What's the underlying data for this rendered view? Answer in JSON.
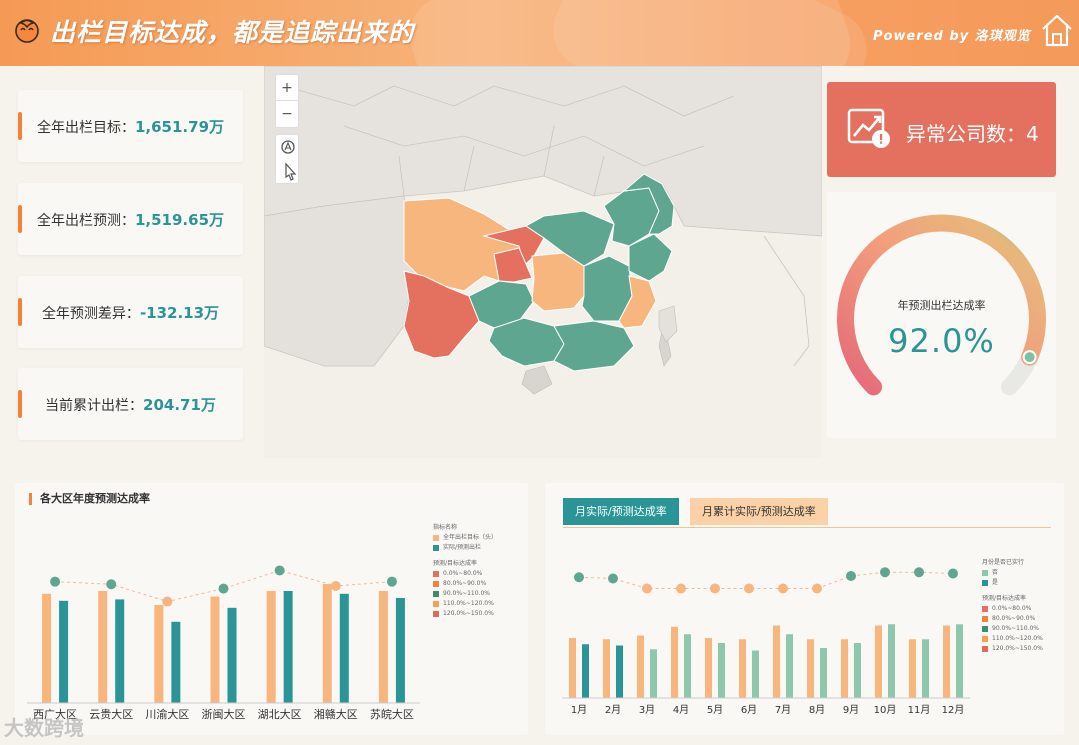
{
  "header": {
    "title": "出栏目标达成，都是追踪出来的",
    "powered": "Powered  by  洛琪观览"
  },
  "kpis": [
    {
      "label": "全年出栏目标：",
      "value": "1,651.79万"
    },
    {
      "label": "全年出栏预测：",
      "value": "1,519.65万"
    },
    {
      "label": "全年预测差异：",
      "value": "-132.13万"
    },
    {
      "label": "当前累计出栏：",
      "value": "204.71万"
    }
  ],
  "map_controls": {
    "zoom_in": "+",
    "zoom_out": "−"
  },
  "abnormal": {
    "label": "异常公司数：",
    "value": "4"
  },
  "gauge": {
    "label": "年预测出栏达成率",
    "value": "92.0%",
    "fraction": 0.92
  },
  "colors": {
    "teal": "#2a9496",
    "orange": "#f0823c",
    "peach": "#f8b67f",
    "red": "#e4705f",
    "green": "#5fa691",
    "mint": "#8fc7ad"
  },
  "panel1": {
    "title": "各大区年度预测达成率",
    "legend_title": "指标名称",
    "legend_items": [
      "全年出栏目标（头）",
      "实际/预测出栏"
    ],
    "rate_title": "预测/目标达成率",
    "rate_items": [
      "0.0%~80.0%",
      "80.0%~90.0%",
      "90.0%~110.0%",
      "110.0%~120.0%",
      "120.0%~150.0%"
    ]
  },
  "panel2": {
    "tab_active": "月实际/预测达成率",
    "tab_inactive": "月累计实际/预测达成率",
    "legend_title": "月份是否已实行",
    "legend_items": [
      "否",
      "是"
    ],
    "rate_title": "预测/目标达成率",
    "rate_items": [
      "0.0%~80.0%",
      "80.0%~90.0%",
      "90.0%~110.0%",
      "110.0%~120.0%",
      "120.0%~150.0%"
    ]
  },
  "chart_data": [
    {
      "type": "bar",
      "title": "各大区年度预测达成率",
      "categories": [
        "西广大区",
        "云贵大区",
        "川渝大区",
        "浙闽大区",
        "湖北大区",
        "湘赣大区",
        "苏皖大区"
      ],
      "series": [
        {
          "name": "全年出栏目标（头）",
          "values": [
            78,
            80,
            70,
            76,
            80,
            85,
            80
          ]
        },
        {
          "name": "实际/预测出栏",
          "values": [
            73,
            74,
            58,
            68,
            80,
            78,
            75
          ]
        }
      ],
      "rate": [
        93.5,
        92.0,
        82.0,
        89.5,
        100.0,
        91.0,
        93.5
      ],
      "rate_colors": [
        "#5fa691",
        "#5fa691",
        "#f8b67f",
        "#5fa691",
        "#5fa691",
        "#f8b67f",
        "#5fa691"
      ],
      "ylim": [
        0,
        100
      ]
    },
    {
      "type": "bar",
      "title": "月实际/预测达成率",
      "categories": [
        "1月",
        "2月",
        "3月",
        "4月",
        "5月",
        "6月",
        "7月",
        "8月",
        "9月",
        "10月",
        "11月",
        "12月"
      ],
      "series": [
        {
          "name": "目标",
          "values": [
            48,
            47,
            50,
            57,
            48,
            47,
            58,
            47,
            47,
            58,
            47,
            58
          ]
        },
        {
          "name": "实际/预测",
          "values": [
            43,
            42,
            39,
            51,
            44,
            38,
            51,
            40,
            44,
            59,
            47,
            59
          ]
        }
      ],
      "executed": [
        true,
        true,
        false,
        false,
        false,
        false,
        false,
        false,
        false,
        false,
        false,
        false
      ],
      "rate": [
        95.0,
        94.0,
        86.0,
        86.0,
        86.0,
        86.0,
        86.0,
        86.0,
        96.0,
        99.0,
        99.0,
        98.0
      ],
      "rate_colors": [
        "#5fa691",
        "#5fa691",
        "#f8b67f",
        "#f8b67f",
        "#f8b67f",
        "#f8b67f",
        "#f8b67f",
        "#f8b67f",
        "#5fa691",
        "#5fa691",
        "#5fa691",
        "#5fa691"
      ],
      "ylim": [
        0,
        100
      ]
    }
  ],
  "watermark": "大数跨境"
}
